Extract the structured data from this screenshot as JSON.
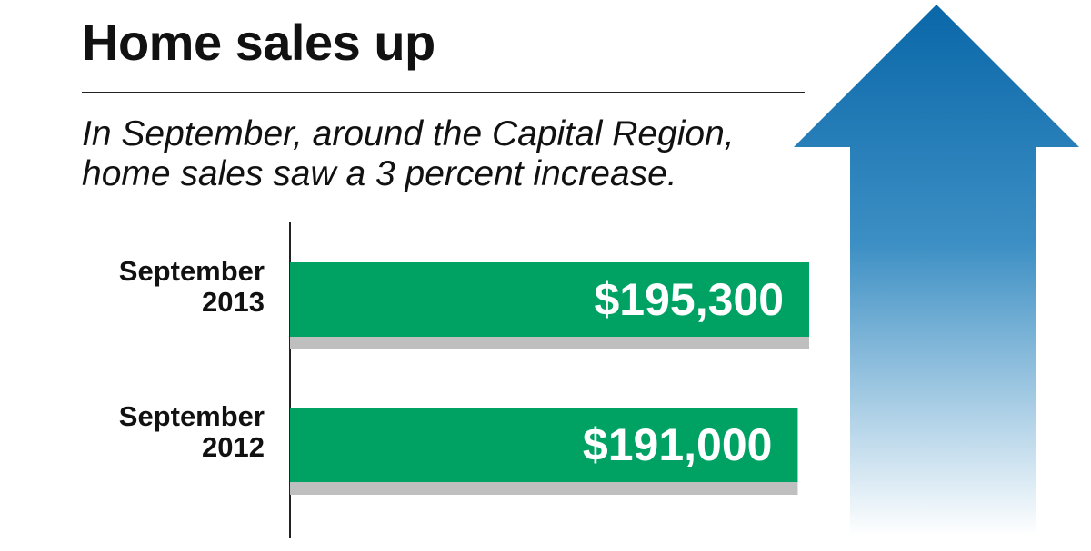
{
  "header": {
    "title": "Home sales up",
    "subtitle": "In September, around the Capital Region, home sales saw a 3 percent increase."
  },
  "colors": {
    "bar": "#00a264",
    "bar_shadow": "#bfbfbf",
    "arrow_top": "#0a67a8",
    "arrow_bottom": "#ffffff",
    "text": "#111111"
  },
  "chart_data": {
    "type": "bar",
    "orientation": "horizontal",
    "categories": [
      "September 2013",
      "September 2012"
    ],
    "category_lines": [
      [
        "September",
        "2013"
      ],
      [
        "September",
        "2012"
      ]
    ],
    "values": [
      195300,
      191000
    ],
    "value_labels": [
      "$195,300",
      "$191,000"
    ],
    "xlim": [
      0,
      210000
    ],
    "grid": false,
    "title": "Home sales up",
    "xlabel": "",
    "ylabel": ""
  }
}
